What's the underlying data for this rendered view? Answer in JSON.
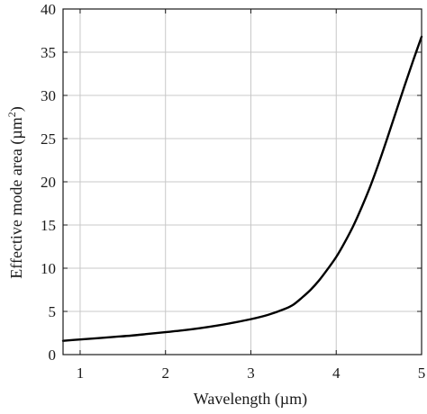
{
  "chart_data": {
    "type": "line",
    "title": "",
    "xlabel": "Wavelength (µm)",
    "ylabel_main": "Effective mode area (µm",
    "ylabel_sup": "2",
    "ylabel_end": ")",
    "xlim": [
      0.8,
      5.0
    ],
    "ylim": [
      0,
      40
    ],
    "xticks": [
      1,
      2,
      3,
      4,
      5
    ],
    "xtick_labels": [
      "1",
      "2",
      "3",
      "4",
      "5"
    ],
    "yticks": [
      0,
      5,
      10,
      15,
      20,
      25,
      30,
      35,
      40
    ],
    "ytick_labels": [
      "0",
      "5",
      "10",
      "15",
      "20",
      "25",
      "30",
      "35",
      "40"
    ],
    "grid": true,
    "line_color": "#000000",
    "series": [
      {
        "x": [
          0.8,
          1.0,
          1.2,
          1.4,
          1.6,
          1.8,
          2.0,
          2.2,
          2.4,
          2.6,
          2.8,
          3.0,
          3.2,
          3.4,
          3.5,
          3.6,
          3.7,
          3.8,
          3.9,
          4.0,
          4.1,
          4.2,
          4.3,
          4.4,
          4.5,
          4.6,
          4.7,
          4.8,
          4.9,
          5.0
        ],
        "y": [
          1.6,
          1.75,
          1.9,
          2.05,
          2.2,
          2.4,
          2.6,
          2.8,
          3.05,
          3.35,
          3.7,
          4.1,
          4.6,
          5.3,
          5.8,
          6.6,
          7.5,
          8.6,
          9.9,
          11.3,
          13.0,
          14.9,
          17.1,
          19.5,
          22.2,
          25.1,
          28.1,
          31.1,
          34.0,
          36.8
        ]
      }
    ]
  }
}
